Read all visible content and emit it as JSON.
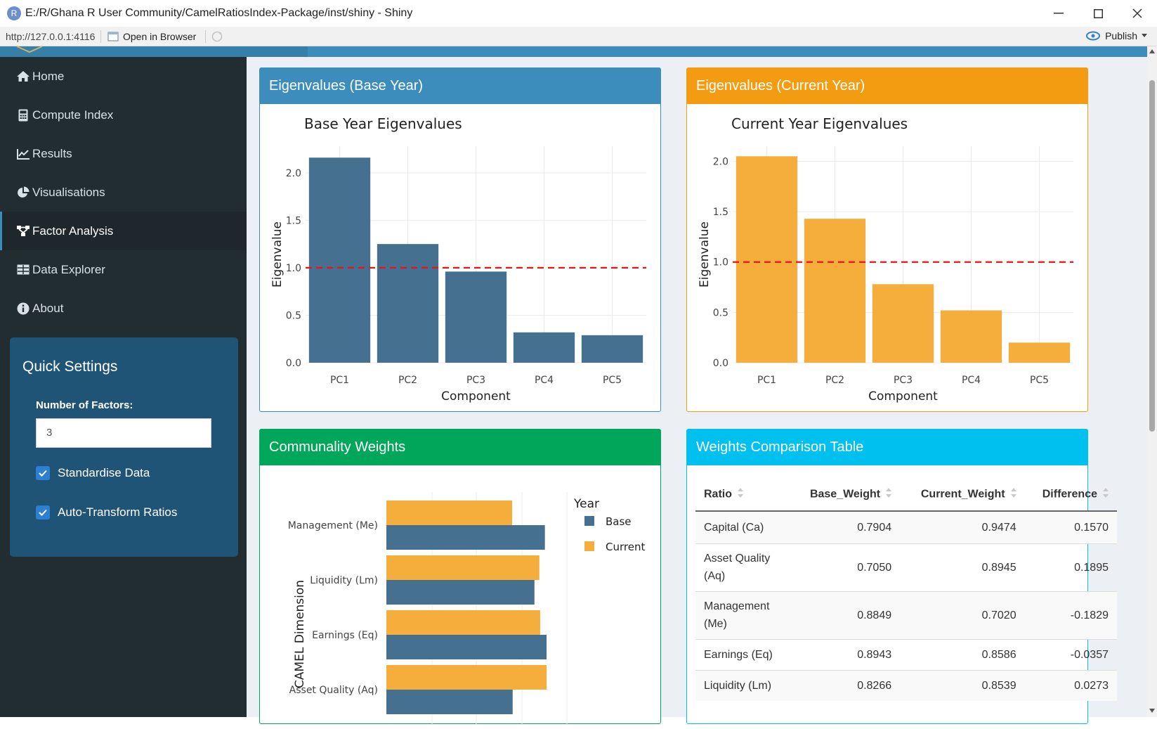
{
  "window": {
    "title": "E:/R/Ghana R User Community/CamelRatiosIndex-Package/inst/shiny - Shiny"
  },
  "addressbar": {
    "url": "http://127.0.0.1:4116",
    "open_in_browser": "Open in Browser",
    "publish": "Publish"
  },
  "sidebar": {
    "items": [
      {
        "label": "Home",
        "icon": "home-icon"
      },
      {
        "label": "Compute Index",
        "icon": "calculator-icon"
      },
      {
        "label": "Results",
        "icon": "line-chart-icon"
      },
      {
        "label": "Visualisations",
        "icon": "pie-chart-icon"
      },
      {
        "label": "Factor Analysis",
        "icon": "sitemap-icon",
        "active": true
      },
      {
        "label": "Data Explorer",
        "icon": "table-icon"
      },
      {
        "label": "About",
        "icon": "info-icon"
      }
    ],
    "quick_settings": {
      "title": "Quick Settings",
      "factors_label": "Number of Factors:",
      "factors_value": "3",
      "standardise_label": "Standardise Data",
      "standardise_checked": true,
      "autotransform_label": "Auto-Transform Ratios",
      "autotransform_checked": true
    }
  },
  "colors": {
    "base": "#3c8dbc",
    "current": "#f39c12",
    "communality": "#00a65a",
    "table": "#00c0ef",
    "bar_base": "#46708f",
    "bar_current": "#f5ae3b",
    "sidebar_bg": "#222d32"
  },
  "boxes": {
    "eig_base_title": "Eigenvalues (Base Year)",
    "eig_current_title": "Eigenvalues (Current Year)",
    "communality_title": "Communality Weights",
    "table_title": "Weights Comparison Table"
  },
  "chart_data": [
    {
      "type": "bar",
      "title": "Base Year Eigenvalues",
      "xlabel": "Component",
      "ylabel": "Eigenvalue",
      "categories": [
        "PC1",
        "PC2",
        "PC3",
        "PC4",
        "PC5"
      ],
      "values": [
        2.16,
        1.25,
        0.96,
        0.32,
        0.29
      ],
      "ylim": [
        0,
        2.28
      ],
      "yticks": [
        "0.0",
        "0.5",
        "1.0",
        "1.5",
        "2.0"
      ],
      "reference_line": 1.0,
      "color": "#46708f"
    },
    {
      "type": "bar",
      "title": "Current Year Eigenvalues",
      "xlabel": "Component",
      "ylabel": "Eigenvalue",
      "categories": [
        "PC1",
        "PC2",
        "PC3",
        "PC4",
        "PC5"
      ],
      "values": [
        2.05,
        1.43,
        0.78,
        0.52,
        0.2
      ],
      "ylim": [
        0,
        2.15
      ],
      "yticks": [
        "0.0",
        "0.5",
        "1.0",
        "1.5",
        "2.0"
      ],
      "reference_line": 1.0,
      "color": "#f5ae3b"
    },
    {
      "type": "bar",
      "orientation": "horizontal",
      "ylabel": "CAMEL Dimension",
      "legend_title": "Year",
      "categories": [
        "Management (Me)",
        "Liquidity (Lm)",
        "Earnings (Eq)",
        "Asset Quality (Aq)"
      ],
      "series": [
        {
          "name": "Base",
          "values": [
            0.8849,
            0.8266,
            0.8943,
            0.705
          ],
          "color": "#46708f"
        },
        {
          "name": "Current",
          "values": [
            0.702,
            0.8539,
            0.8586,
            0.8945
          ],
          "color": "#f5ae3b"
        }
      ]
    }
  ],
  "weights_table": {
    "headers": [
      "Ratio",
      "Base_Weight",
      "Current_Weight",
      "Difference"
    ],
    "rows": [
      {
        "ratio_lines": [
          "Capital (Ca)"
        ],
        "base": "0.7904",
        "current": "0.9474",
        "diff": "0.1570"
      },
      {
        "ratio_lines": [
          "Asset Quality",
          "(Aq)"
        ],
        "base": "0.7050",
        "current": "0.8945",
        "diff": "0.1895"
      },
      {
        "ratio_lines": [
          "Management",
          "(Me)"
        ],
        "base": "0.8849",
        "current": "0.7020",
        "diff": "-0.1829"
      },
      {
        "ratio_lines": [
          "Earnings (Eq)"
        ],
        "base": "0.8943",
        "current": "0.8586",
        "diff": "-0.0357"
      },
      {
        "ratio_lines": [
          "Liquidity (Lm)"
        ],
        "base": "0.8266",
        "current": "0.8539",
        "diff": "0.0273"
      }
    ]
  }
}
